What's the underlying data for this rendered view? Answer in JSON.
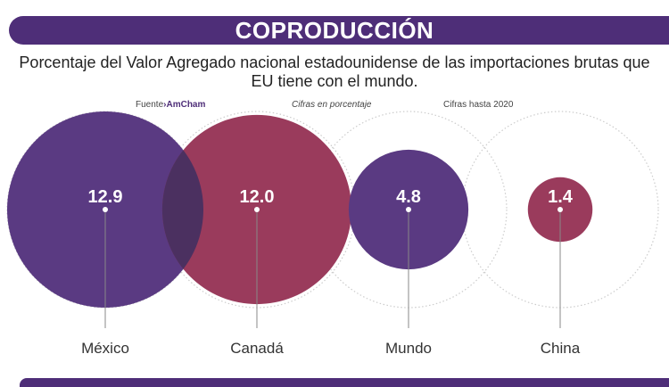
{
  "header": {
    "title": "COPRODUCCIÓN"
  },
  "subtitle_line1": "Porcentaje del Valor Agregado nacional estadounidense de las importaciones brutas que",
  "subtitle_line2": "EU tiene con el mundo.",
  "notes": {
    "source_label": "Fuente",
    "source_sep": "›",
    "source_name": "AmCham",
    "units": "Cifras en porcentaje",
    "period": "Cifras hasta 2020"
  },
  "colors": {
    "purple": "#5a3a82",
    "red": "#9a3b5c",
    "overlap": "#4b3060",
    "header": "#4e2e78"
  },
  "chart_data": {
    "type": "bubble",
    "categories": [
      "México",
      "Canadá",
      "Mundo",
      "China"
    ],
    "values": [
      12.9,
      12.0,
      4.8,
      1.4
    ],
    "value_labels": [
      "12.9",
      "12.0",
      "4.8",
      "1.4"
    ],
    "series_colors": [
      "purple",
      "red",
      "purple",
      "red"
    ],
    "units": "porcentaje"
  }
}
